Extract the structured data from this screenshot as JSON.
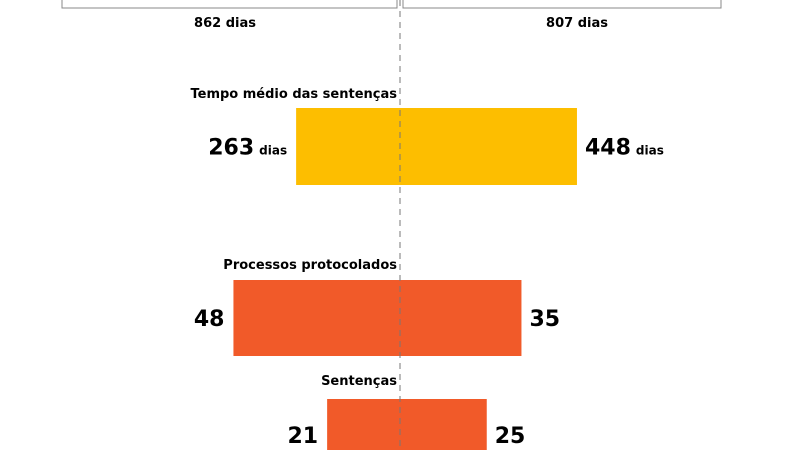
{
  "chart_data": {
    "type": "bar",
    "subtype": "diverging",
    "totals": {
      "left": "862 dias",
      "right": "807 dias",
      "left_value": 862,
      "right_value": 807
    },
    "groups": [
      {
        "label": "Tempo médio das sentenças",
        "left": 263,
        "right": 448,
        "unit": "dias",
        "color": "#FDBE00"
      },
      {
        "label": "Processos protocolados",
        "left": 48,
        "right": 35,
        "unit": "",
        "color": "#F15A29"
      },
      {
        "label": "Sentenças",
        "left": 21,
        "right": 25,
        "unit": "",
        "color": "#F15A29"
      }
    ]
  }
}
